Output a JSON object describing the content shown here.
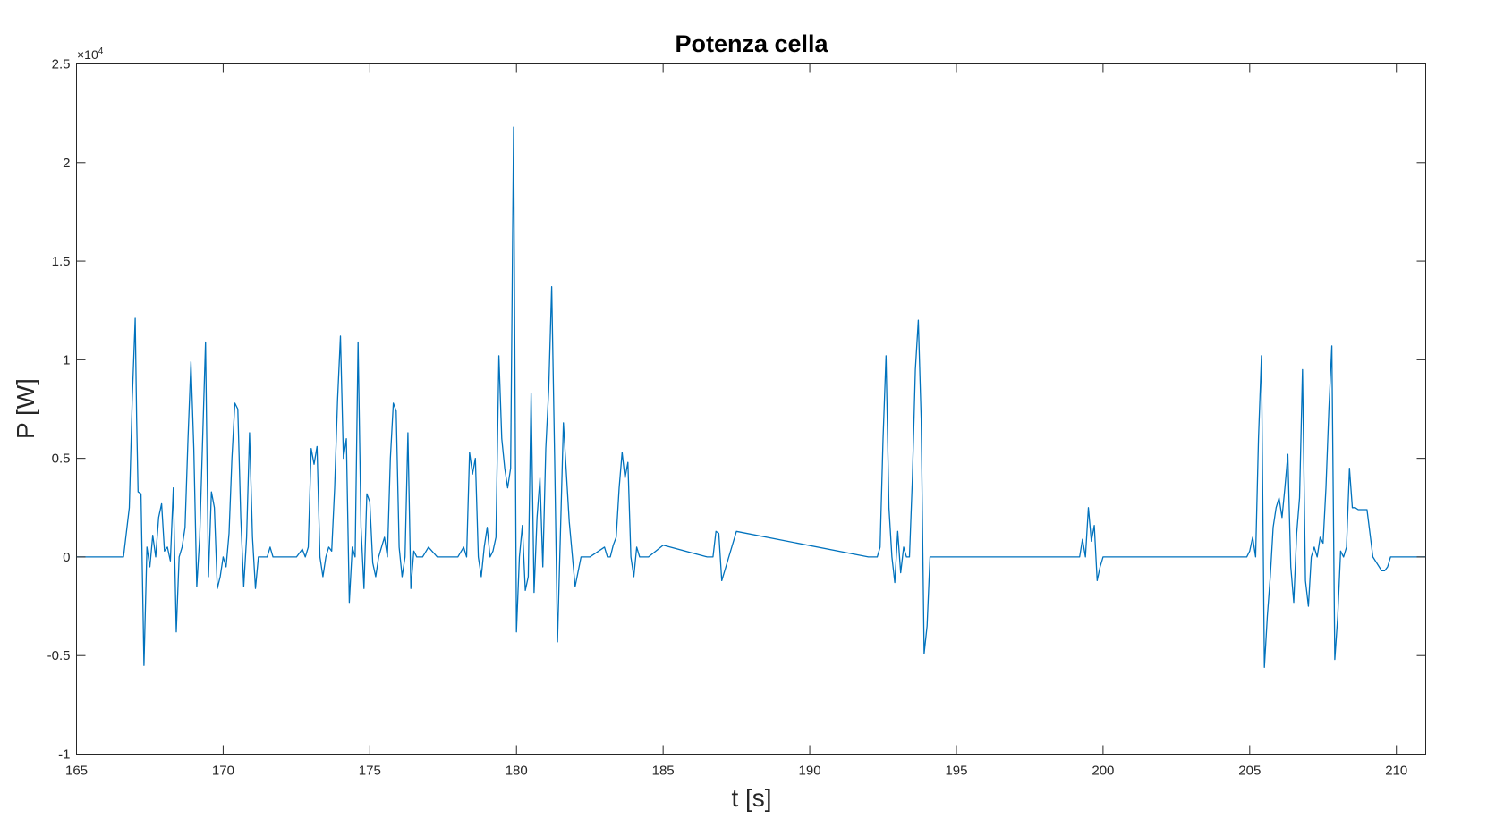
{
  "chart_data": {
    "type": "line",
    "title": "Potenza cella",
    "xlabel": "t [s]",
    "ylabel": "P [W]",
    "xlim": [
      165,
      211
    ],
    "ylim": [
      -10000,
      25000
    ],
    "x_ticks": [
      165,
      170,
      175,
      180,
      185,
      190,
      195,
      200,
      205,
      210
    ],
    "x_tick_labels": [
      "165",
      "170",
      "175",
      "180",
      "185",
      "190",
      "195",
      "200",
      "205",
      "210"
    ],
    "y_ticks": [
      -10000,
      -5000,
      0,
      5000,
      10000,
      15000,
      20000,
      25000
    ],
    "y_tick_labels": [
      "-1",
      "-0.5",
      "0",
      "0.5",
      "1",
      "1.5",
      "2",
      "2.5"
    ],
    "y_exponent": {
      "base": "×10",
      "power": "4"
    },
    "grid": false,
    "line_color": "#0072BD",
    "series": [
      {
        "x": [
          165.0,
          166.6,
          166.8,
          166.9,
          167.0,
          167.05,
          167.1,
          167.2,
          167.3,
          167.4,
          167.5,
          167.6,
          167.7,
          167.8,
          167.9,
          168.0,
          168.1,
          168.2,
          168.3,
          168.4,
          168.5,
          168.6,
          168.7,
          168.8,
          168.9,
          169.0,
          169.1,
          169.2,
          169.3,
          169.4,
          169.5,
          169.6,
          169.7,
          169.8,
          169.9,
          170.0,
          170.1,
          170.2,
          170.3,
          170.4,
          170.5,
          170.6,
          170.7,
          170.8,
          170.9,
          171.0,
          171.1,
          171.2,
          171.3,
          171.5,
          171.6,
          171.7,
          172.5,
          172.7,
          172.8,
          172.9,
          173.0,
          173.1,
          173.2,
          173.3,
          173.4,
          173.5,
          173.6,
          173.7,
          173.8,
          173.9,
          174.0,
          174.1,
          174.2,
          174.3,
          174.4,
          174.5,
          174.6,
          174.7,
          174.8,
          174.9,
          175.0,
          175.1,
          175.2,
          175.3,
          175.4,
          175.5,
          175.6,
          175.7,
          175.8,
          175.9,
          176.0,
          176.1,
          176.2,
          176.3,
          176.4,
          176.5,
          176.6,
          176.8,
          177.0,
          177.3,
          177.5,
          178.0,
          178.2,
          178.3,
          178.4,
          178.5,
          178.6,
          178.7,
          178.8,
          178.9,
          179.0,
          179.1,
          179.2,
          179.3,
          179.4,
          179.5,
          179.6,
          179.7,
          179.8,
          179.9,
          180.0,
          180.1,
          180.2,
          180.3,
          180.4,
          180.5,
          180.6,
          180.7,
          180.8,
          180.9,
          181.0,
          181.1,
          181.2,
          181.3,
          181.4,
          181.6,
          181.8,
          182.0,
          182.2,
          182.5,
          183.0,
          183.1,
          183.2,
          183.3,
          183.4,
          183.5,
          183.6,
          183.7,
          183.8,
          183.9,
          184.0,
          184.1,
          184.2,
          184.5,
          185.0,
          186.5,
          186.6,
          186.7,
          186.8,
          186.9,
          187.0,
          187.5,
          192.0,
          192.2,
          192.3,
          192.4,
          192.5,
          192.6,
          192.7,
          192.8,
          192.9,
          193.0,
          193.1,
          193.2,
          193.3,
          193.4,
          193.5,
          193.6,
          193.7,
          193.8,
          193.9,
          194.0,
          194.1,
          194.3,
          199.0,
          199.2,
          199.3,
          199.4,
          199.5,
          199.6,
          199.7,
          199.8,
          199.9,
          200.0,
          204.9,
          205.0,
          205.1,
          205.2,
          205.3,
          205.4,
          205.5,
          205.6,
          205.7,
          205.8,
          205.9,
          206.0,
          206.1,
          206.2,
          206.3,
          206.4,
          206.5,
          206.6,
          206.7,
          206.8,
          206.9,
          207.0,
          207.1,
          207.2,
          207.3,
          207.4,
          207.5,
          207.6,
          207.7,
          207.8,
          207.9,
          208.0,
          208.1,
          208.2,
          208.3,
          208.4,
          208.5,
          208.6,
          208.7,
          208.8,
          208.9,
          209.0,
          209.2,
          209.5,
          209.6,
          209.7,
          209.8,
          209.9,
          210.0,
          210.2,
          211.0
        ],
        "y": [
          0,
          0,
          2500,
          8000,
          12100,
          7000,
          3300,
          3200,
          -5500,
          500,
          -500,
          1100,
          0,
          2000,
          2700,
          300,
          500,
          -200,
          3500,
          -3800,
          0,
          500,
          1500,
          6000,
          9900,
          5500,
          -1500,
          1000,
          6000,
          10900,
          -1000,
          3300,
          2500,
          -1600,
          -1000,
          0,
          -500,
          1200,
          5000,
          7800,
          7500,
          2000,
          -1500,
          1000,
          6300,
          1000,
          -1600,
          0,
          0,
          0,
          500,
          0,
          0,
          400,
          0,
          500,
          5500,
          4700,
          5600,
          0,
          -1000,
          0,
          500,
          300,
          3500,
          8000,
          11200,
          5000,
          6000,
          -2300,
          500,
          0,
          10900,
          1500,
          -1600,
          3200,
          2800,
          -300,
          -1000,
          0,
          500,
          1000,
          0,
          5000,
          7800,
          7400,
          500,
          -1000,
          0,
          6300,
          -1600,
          300,
          0,
          0,
          500,
          0,
          0,
          0,
          500,
          0,
          5300,
          4200,
          5000,
          0,
          -1000,
          500,
          1500,
          0,
          300,
          1000,
          10200,
          6000,
          4500,
          3500,
          4500,
          21800,
          -3800,
          0,
          1600,
          -1700,
          -1000,
          8300,
          -1800,
          2000,
          4000,
          -500,
          5500,
          8500,
          13700,
          5000,
          -4300,
          6800,
          1800,
          -1500,
          0,
          0,
          500,
          0,
          0,
          600,
          1000,
          3500,
          5300,
          4000,
          4800,
          0,
          -1000,
          500,
          0,
          0,
          600,
          0,
          0,
          0,
          1300,
          1200,
          -1200,
          1300,
          0,
          0,
          0,
          500,
          6000,
          10200,
          2500,
          0,
          -1300,
          1300,
          -800,
          500,
          0,
          0,
          4000,
          9500,
          12000,
          7000,
          -4900,
          -3500,
          0,
          0,
          0,
          0,
          900,
          0,
          2500,
          800,
          1600,
          -1200,
          -500,
          0,
          0,
          300,
          1000,
          0,
          6000,
          10200,
          -5600,
          -3000,
          -1000,
          1500,
          2500,
          3000,
          2000,
          3500,
          5200,
          -500,
          -2300,
          1200,
          3000,
          9500,
          -1200,
          -2500,
          0,
          500,
          0,
          1000,
          700,
          3500,
          7500,
          10700,
          -5200,
          -3000,
          300,
          0,
          500,
          4500,
          2500,
          2500,
          2400,
          2400,
          2400,
          2400,
          0,
          -700,
          -700,
          -500,
          0,
          0,
          0,
          0,
          0
        ]
      }
    ]
  }
}
